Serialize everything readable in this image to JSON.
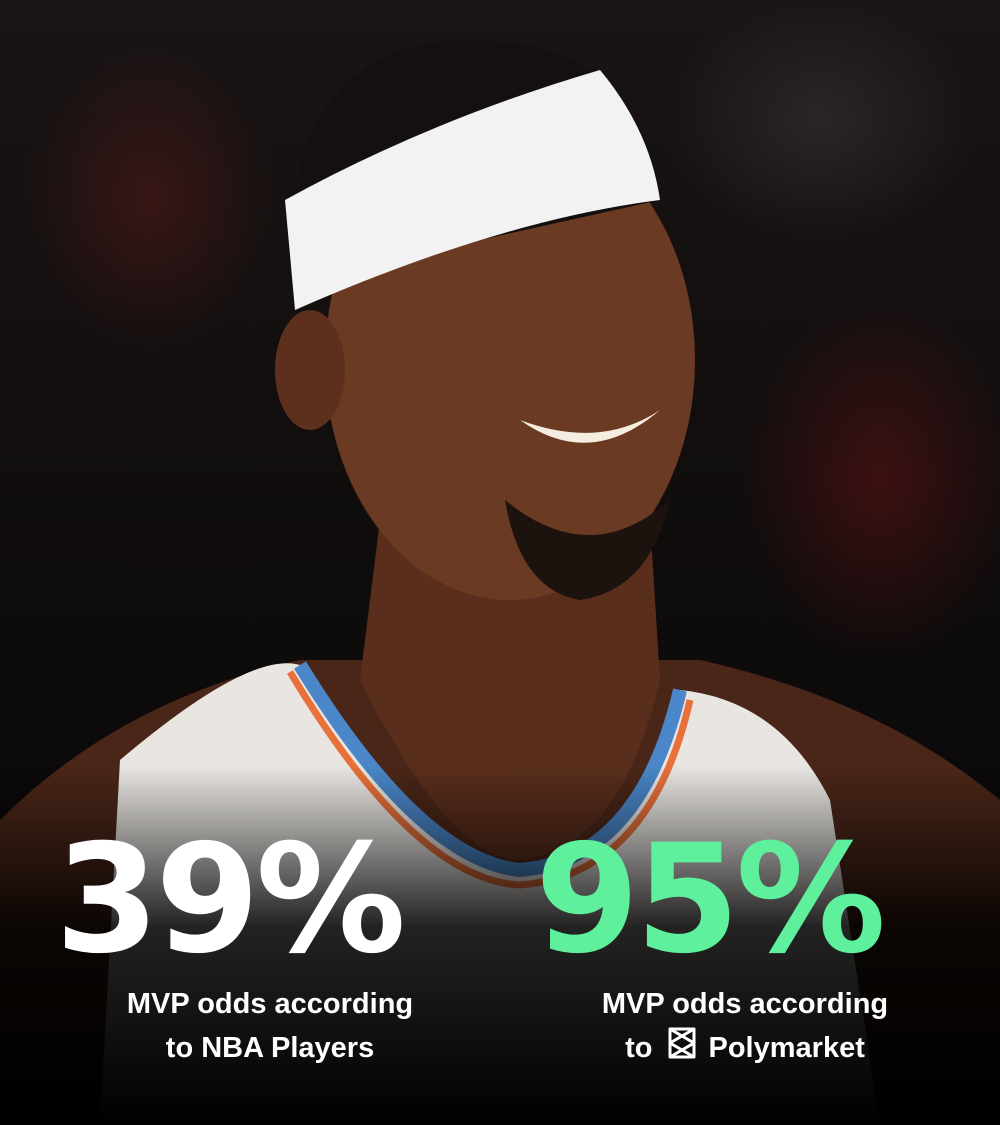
{
  "left_stat": {
    "value": "39%",
    "line1": "MVP odds according",
    "line2": "to NBA Players",
    "color": "#ffffff"
  },
  "right_stat": {
    "value": "95%",
    "line1": "MVP odds according",
    "line2_prefix": "to",
    "brand": "Polymarket",
    "brand_icon": "polymarket-logo-icon",
    "color": "#5ef09c"
  },
  "photo": {
    "subject": "basketball-player-smiling",
    "headband_color": "#f2f2f2",
    "jersey_color": "#e9e6e2"
  }
}
